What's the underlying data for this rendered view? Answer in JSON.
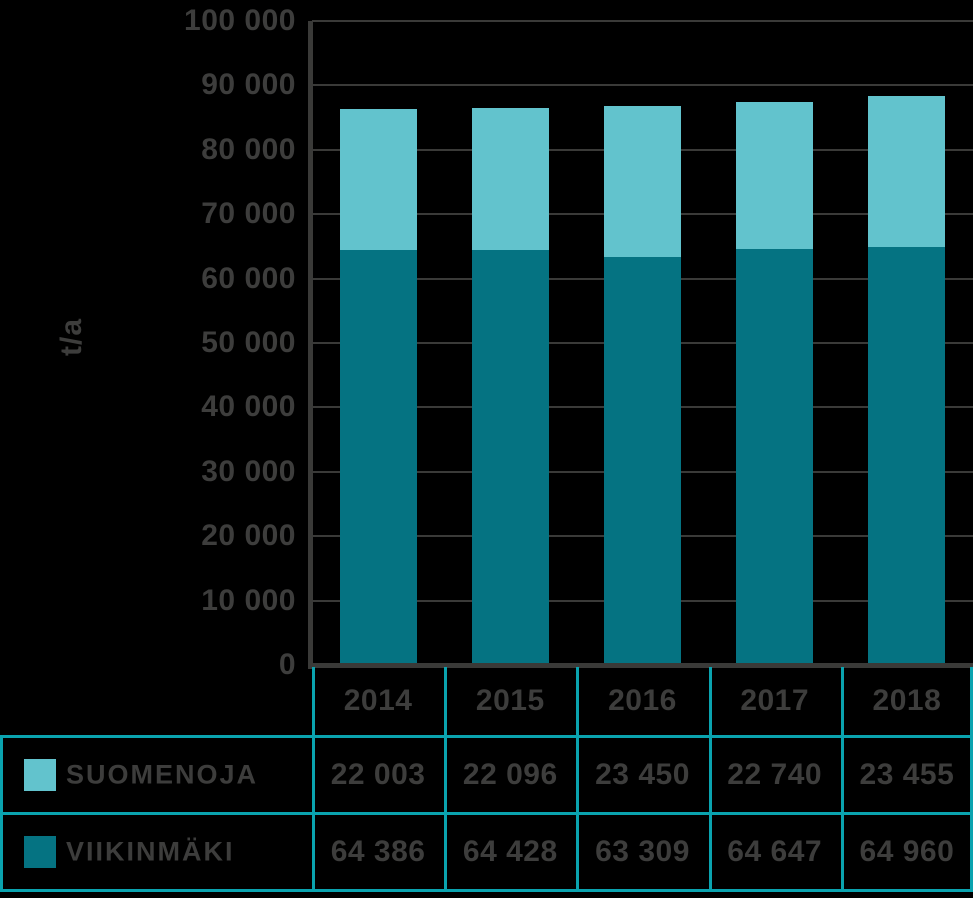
{
  "chart_data": {
    "type": "bar",
    "stacked": true,
    "title": "",
    "ylabel": "t/a",
    "ylim": [
      0,
      100000
    ],
    "ytick_step": 10000,
    "grid": true,
    "legend_position": "table-below",
    "thousands_separator": " ",
    "categories": [
      "2014",
      "2015",
      "2016",
      "2017",
      "2018"
    ],
    "series": [
      {
        "name": "SUOMENOJA",
        "color": "#62C3CD",
        "values": [
          22003,
          22096,
          23450,
          22740,
          23455
        ]
      },
      {
        "name": "VIIKINMÄKI",
        "color": "#057382",
        "values": [
          64386,
          64428,
          63309,
          64647,
          64960
        ]
      }
    ],
    "stack_order_bottom_to_top": [
      "VIIKINMÄKI",
      "SUOMENOJA"
    ]
  },
  "colors": {
    "suomenoja": "#62C3CD",
    "viikinmaki": "#057382",
    "table_border": "#0AA3AF",
    "grid_axis": "#3A3A38",
    "text": "#3D3D3C",
    "background": "#000000"
  }
}
